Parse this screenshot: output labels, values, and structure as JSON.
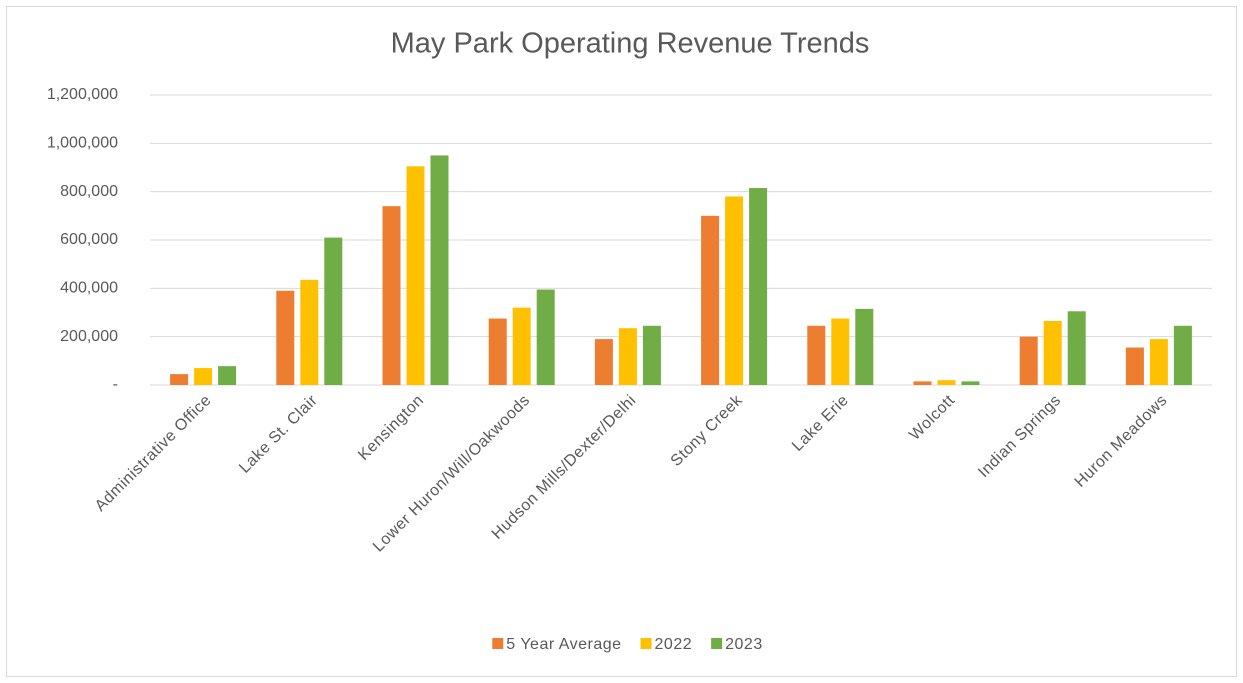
{
  "chart_data": {
    "type": "bar",
    "title": "May Park Operating Revenue Trends",
    "categories": [
      "Administrative Office",
      "Lake St. Clair",
      "Kensington",
      "Lower Huron/Will/Oakwoods",
      "Hudson Mills/Dexter/Delhi",
      "Stony Creek",
      "Lake Erie",
      "Wolcott",
      "Indian Springs",
      "Huron Meadows"
    ],
    "series": [
      {
        "name": "5 Year Average",
        "color": "#ed7d31",
        "values": [
          45000,
          390000,
          740000,
          275000,
          190000,
          700000,
          245000,
          15000,
          200000,
          155000
        ]
      },
      {
        "name": "2022",
        "color": "#ffc000",
        "values": [
          70000,
          435000,
          905000,
          320000,
          235000,
          780000,
          275000,
          20000,
          265000,
          190000
        ]
      },
      {
        "name": "2023",
        "color": "#70ad47",
        "values": [
          78000,
          610000,
          950000,
          395000,
          245000,
          815000,
          315000,
          15000,
          305000,
          245000
        ]
      }
    ],
    "ylim": [
      0,
      1200000
    ],
    "yticks": [
      {
        "value": 0,
        "label": "-"
      },
      {
        "value": 200000,
        "label": "200,000"
      },
      {
        "value": 400000,
        "label": "400,000"
      },
      {
        "value": 600000,
        "label": "600,000"
      },
      {
        "value": 800000,
        "label": "800,000"
      },
      {
        "value": 1000000,
        "label": "1,000,000"
      },
      {
        "value": 1200000,
        "label": "1,200,000"
      }
    ],
    "grid": true,
    "legend": "bottom"
  }
}
